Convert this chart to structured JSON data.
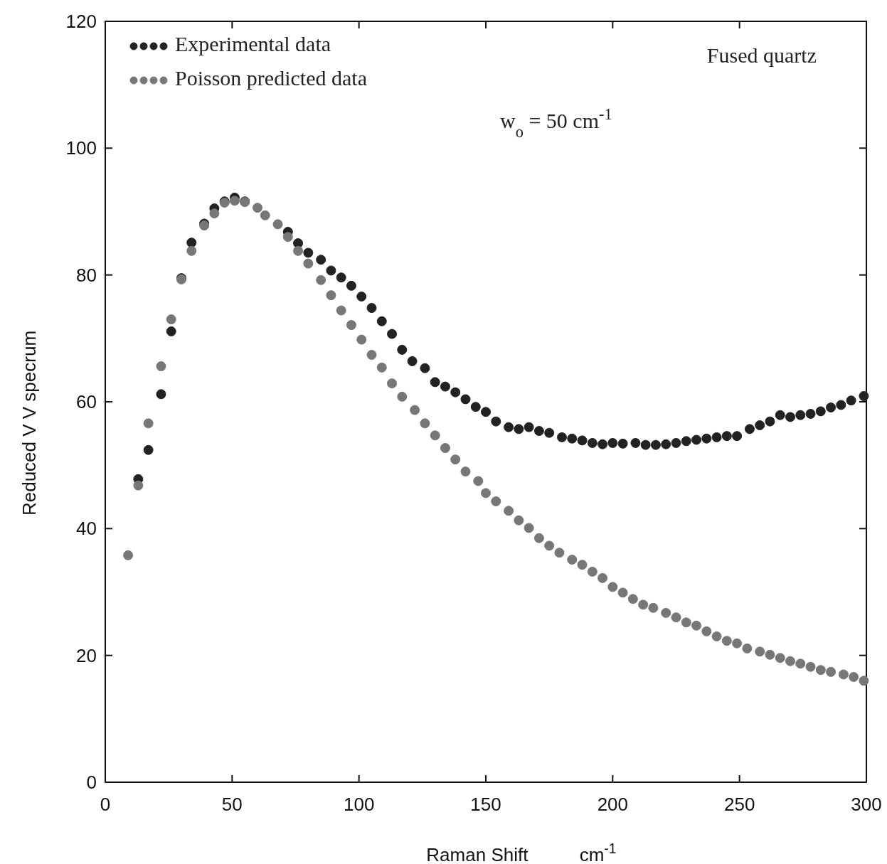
{
  "chart_data": {
    "type": "scatter",
    "xlabel": "Raman Shift          cm$^{-1}$",
    "ylabel": "Reduced V V specrum",
    "xlim": [
      0,
      300
    ],
    "ylim": [
      0,
      120
    ],
    "xticks": [
      0,
      50,
      100,
      150,
      200,
      250,
      300
    ],
    "yticks": [
      0,
      20,
      40,
      60,
      80,
      100,
      120
    ],
    "grid": false,
    "legend": "top left",
    "marker": "circle",
    "annotations": [
      "Fused quartz",
      "w$_{o}$ = 50 cm$^{-1}$"
    ],
    "series": [
      {
        "name": "Experimental data",
        "color": "#222222",
        "x": [
          13,
          17,
          22,
          26,
          30,
          34,
          39,
          43,
          47,
          51,
          55,
          72,
          76,
          80,
          85,
          89,
          93,
          97,
          101,
          105,
          109,
          113,
          117,
          121,
          126,
          130,
          134,
          138,
          142,
          146,
          150,
          154,
          159,
          163,
          167,
          171,
          175,
          180,
          184,
          188,
          192,
          196,
          200,
          204,
          209,
          213,
          217,
          221,
          225,
          229,
          233,
          237,
          241,
          245,
          249,
          254,
          258,
          262,
          266,
          270,
          274,
          278,
          282,
          286,
          290,
          294,
          299
        ],
        "values": [
          47.8,
          52.4,
          61.2,
          71.1,
          79.5,
          85.1,
          88.1,
          90.5,
          91.6,
          92.2,
          91.6,
          86.8,
          85.0,
          83.5,
          82.4,
          80.7,
          79.6,
          78.3,
          76.6,
          74.8,
          72.7,
          70.7,
          68.2,
          66.4,
          65.3,
          63.1,
          62.4,
          61.5,
          60.4,
          59.2,
          58.4,
          56.9,
          56.0,
          55.7,
          56.0,
          55.4,
          55.1,
          54.4,
          54.2,
          53.9,
          53.5,
          53.3,
          53.5,
          53.4,
          53.5,
          53.2,
          53.2,
          53.3,
          53.5,
          53.8,
          54.0,
          54.2,
          54.4,
          54.6,
          54.6,
          55.7,
          56.3,
          56.9,
          57.9,
          57.6,
          57.9,
          58.1,
          58.5,
          59.1,
          59.5,
          60.2,
          60.9
        ]
      },
      {
        "name": "Poisson predicted data",
        "color": "#777777",
        "x": [
          9,
          13,
          17,
          22,
          26,
          30,
          34,
          39,
          43,
          47,
          51,
          55,
          60,
          63,
          68,
          72,
          76,
          80,
          85,
          89,
          93,
          97,
          101,
          105,
          109,
          113,
          117,
          122,
          126,
          130,
          134,
          138,
          142,
          147,
          150,
          154,
          159,
          163,
          167,
          171,
          175,
          179,
          184,
          188,
          192,
          196,
          200,
          204,
          208,
          212,
          216,
          221,
          225,
          229,
          233,
          237,
          241,
          245,
          249,
          253,
          258,
          262,
          266,
          270,
          274,
          278,
          282,
          286,
          291,
          295,
          299
        ],
        "values": [
          35.8,
          46.8,
          56.6,
          65.6,
          73.0,
          79.3,
          83.8,
          87.8,
          89.7,
          91.4,
          91.7,
          91.5,
          90.6,
          89.4,
          88.0,
          86.0,
          83.8,
          81.8,
          79.2,
          76.8,
          74.4,
          72.1,
          69.8,
          67.4,
          65.4,
          62.9,
          60.8,
          58.7,
          56.6,
          54.7,
          52.7,
          50.9,
          49.0,
          47.5,
          45.6,
          44.3,
          42.8,
          41.3,
          40.1,
          38.5,
          37.3,
          36.2,
          35.1,
          34.3,
          33.2,
          32.2,
          30.8,
          29.9,
          28.9,
          28.0,
          27.5,
          26.7,
          26.0,
          25.2,
          24.7,
          23.8,
          23.0,
          22.3,
          21.9,
          21.1,
          20.6,
          20.1,
          19.6,
          19.1,
          18.7,
          18.2,
          17.7,
          17.4,
          17.0,
          16.6,
          16.0
        ]
      }
    ]
  }
}
